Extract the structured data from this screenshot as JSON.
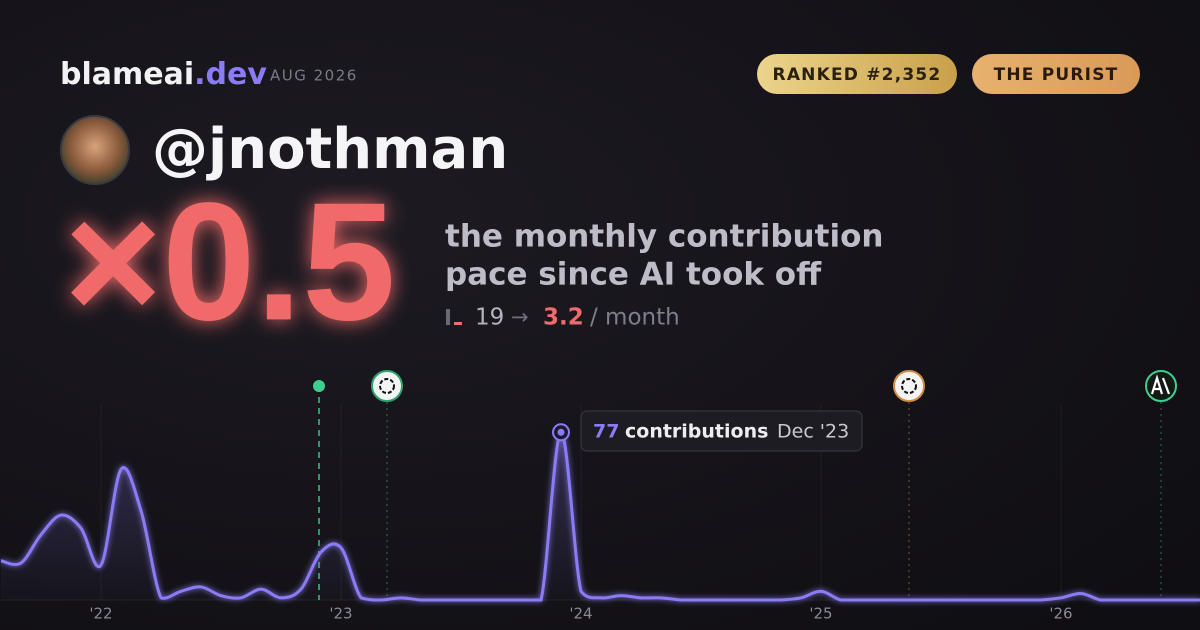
{
  "brand": {
    "name": "blameai",
    "tld": ".dev"
  },
  "date": "AUG 2026",
  "badges": [
    "RANKED #2,352",
    "THE PURIST"
  ],
  "handle": "@jnothman",
  "multiplier": "×0.5",
  "tagline": [
    "the monthly contribution",
    "pace since AI took off"
  ],
  "pace": {
    "before": "19",
    "arrow": "→",
    "after": "3.2",
    "unit": "/ month"
  },
  "chart_data": {
    "type": "line",
    "categories": [
      null,
      null,
      null,
      null,
      null,
      "'22",
      null,
      null,
      null,
      null,
      null,
      null,
      null,
      null,
      null,
      null,
      null,
      "'23",
      null,
      null,
      null,
      null,
      null,
      null,
      null,
      null,
      null,
      null,
      null,
      "'24",
      null,
      null,
      null,
      null,
      null,
      null,
      null,
      null,
      null,
      null,
      null,
      "'25",
      null,
      null,
      null,
      null,
      null,
      null,
      null,
      null,
      null,
      null,
      null,
      "'26",
      null,
      null,
      null,
      null,
      null,
      null,
      null
    ],
    "values": [
      18,
      17,
      30,
      39,
      33,
      16,
      60,
      41,
      1,
      4,
      6,
      2,
      1,
      5,
      1,
      5,
      22,
      24,
      1,
      0,
      1,
      0,
      0,
      0,
      0,
      0,
      0,
      0,
      77,
      4,
      1,
      2,
      1,
      1,
      0,
      0,
      0,
      0,
      0,
      0,
      1,
      4,
      0,
      0,
      0,
      0,
      0,
      0,
      0,
      0,
      0,
      0,
      0,
      1,
      3,
      0,
      0,
      0,
      0,
      0,
      0
    ],
    "color": "#8b7cf6",
    "ylim": [
      0,
      90
    ],
    "tooltip": {
      "value": 77,
      "unit": "contributions",
      "separator": "·",
      "date": "Dec '23"
    }
  }
}
